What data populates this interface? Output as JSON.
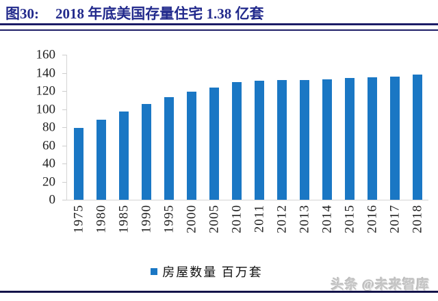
{
  "header": {
    "figure_label": "图30:",
    "title": "2018 年底美国存量住宅 1.38 亿套"
  },
  "chart_data": {
    "type": "bar",
    "title": "2018 年底美国存量住宅 1.38 亿套",
    "categories": [
      "1975",
      "1980",
      "1985",
      "1990",
      "1995",
      "2000",
      "2005",
      "2010",
      "2011",
      "2012",
      "2013",
      "2014",
      "2015",
      "2016",
      "2017",
      "2018"
    ],
    "series": [
      {
        "name": "房屋数量 百万套",
        "values": [
          79,
          88,
          97,
          106,
          113,
          119,
          124,
          130,
          131,
          132,
          132,
          133,
          134,
          135,
          136,
          138
        ]
      }
    ],
    "xlabel": "",
    "ylabel": "",
    "ylim": [
      0,
      160
    ],
    "yticks": [
      0,
      20,
      40,
      60,
      80,
      100,
      120,
      140,
      160
    ],
    "grid": false,
    "legend_position": "bottom",
    "bar_color": "#1a77c4",
    "axis_color": "#d4d4d4",
    "tick_label_color": "#1f1f1f"
  },
  "legend": {
    "label": "房屋数量 百万套",
    "marker_color": "#1a77c4"
  },
  "watermark": {
    "text": "头条 @未来智库"
  },
  "colors": {
    "title": "#222a8c",
    "header_rule": "#1b1b66",
    "bottom_rule": "#13134a",
    "watermark": "#c6c6c6"
  }
}
